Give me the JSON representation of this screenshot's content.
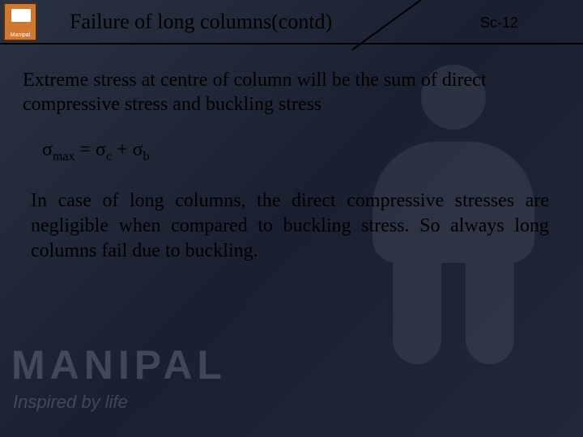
{
  "header": {
    "title": "Failure of long columns(contd)",
    "slide_number": "Sc-12"
  },
  "body": {
    "para1": "Extreme stress at centre of column will be the sum of direct compressive stress and buckling stress",
    "formula": {
      "sigma": "σ",
      "sub_max": "max",
      "eq": " = ",
      "sub_c": "c",
      "plus": " + ",
      "sub_b": "b"
    },
    "para2": "In case of  long columns, the direct compressive stresses are negligible when compared to buckling stress.       So always long columns fail due to buckling."
  },
  "watermark": {
    "brand": "MANIPAL",
    "tagline": "Inspired by life"
  },
  "colors": {
    "bg_gradient_start": "#2a3242",
    "bg_gradient_end": "#212838",
    "text": "#000000",
    "watermark": "rgba(180,186,198,0.25)",
    "logo_bg": "#d07830"
  }
}
